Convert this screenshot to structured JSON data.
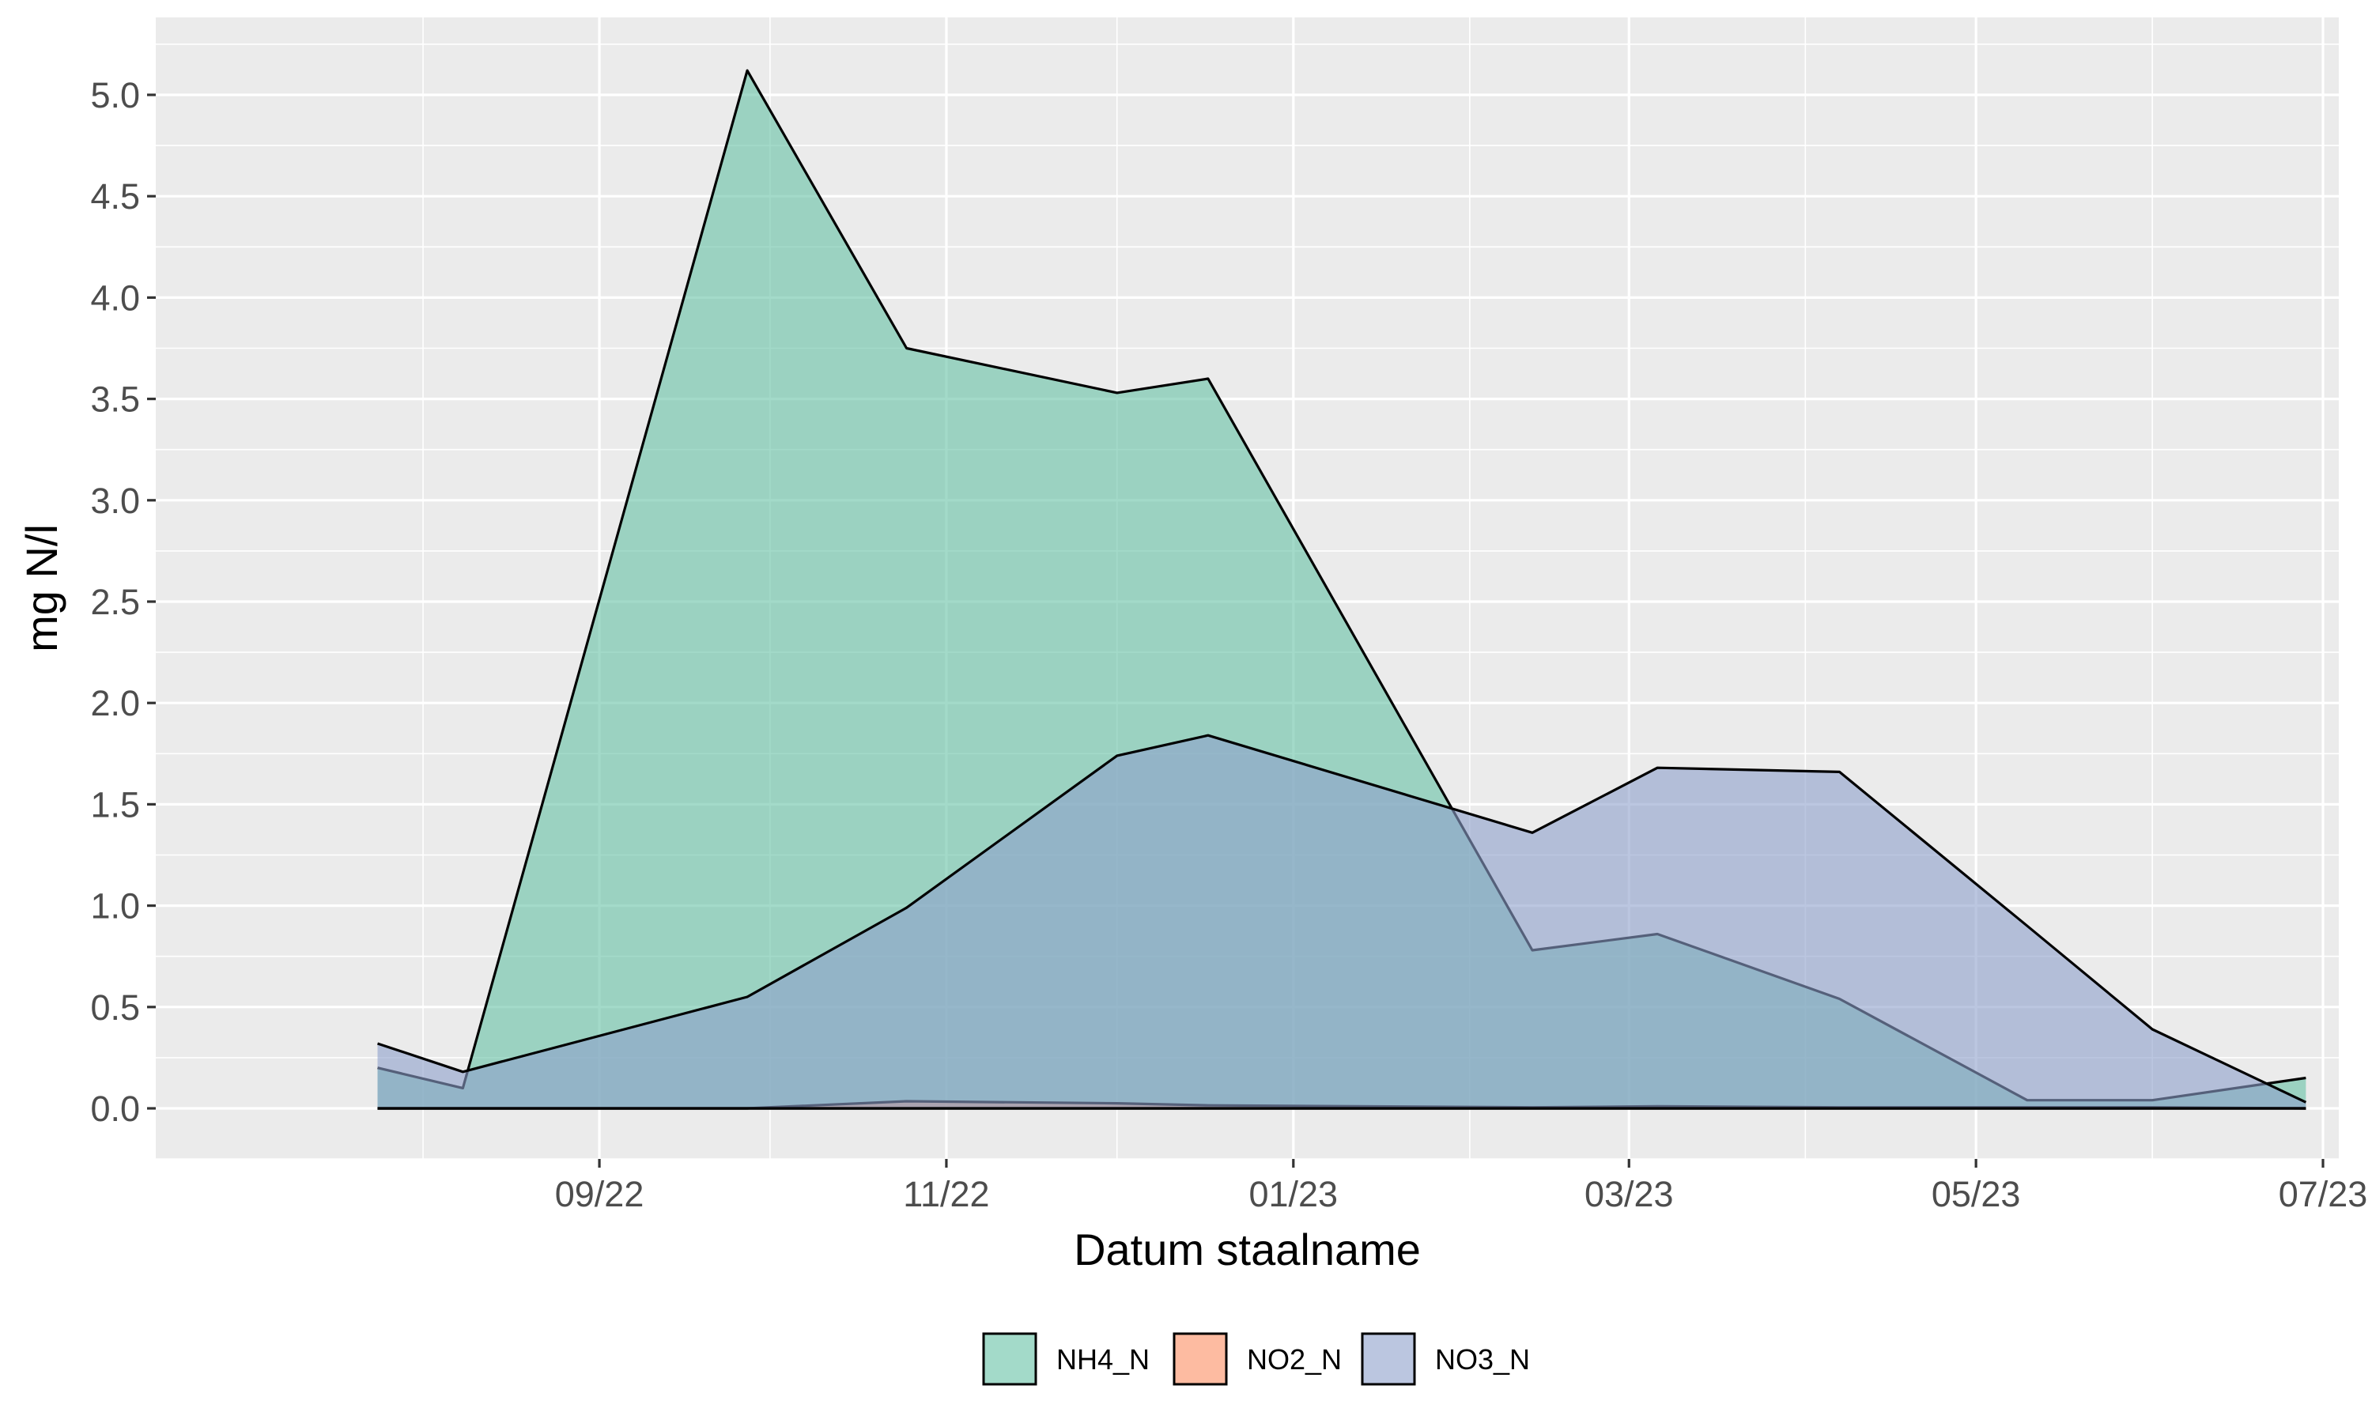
{
  "chart_data": {
    "type": "area",
    "title": "",
    "xlabel": "Datum staalname",
    "ylabel": "mg N/l",
    "ylim": [
      -0.25,
      5.4
    ],
    "grid": true,
    "legend_position": "bottom",
    "x_ticks": [
      {
        "date": "2022-09-01",
        "label": "09/22"
      },
      {
        "date": "2022-11-01",
        "label": "11/22"
      },
      {
        "date": "2023-01-01",
        "label": "01/23"
      },
      {
        "date": "2023-03-01",
        "label": "03/23"
      },
      {
        "date": "2023-05-01",
        "label": "05/23"
      },
      {
        "date": "2023-07-01",
        "label": "07/23"
      }
    ],
    "x_minor_ticks": [
      "2022-08-01",
      "2022-10-01",
      "2022-12-01",
      "2023-02-01",
      "2023-04-01",
      "2023-06-01"
    ],
    "xlim": [
      "2022-07-01",
      "2023-07-01"
    ],
    "y_ticks": [
      {
        "value": 0.0,
        "label": "0.0"
      },
      {
        "value": 0.5,
        "label": "0.5"
      },
      {
        "value": 1.0,
        "label": "1.0"
      },
      {
        "value": 1.5,
        "label": "1.5"
      },
      {
        "value": 2.0,
        "label": "2.0"
      },
      {
        "value": 2.5,
        "label": "2.5"
      },
      {
        "value": 3.0,
        "label": "3.0"
      },
      {
        "value": 3.5,
        "label": "3.5"
      },
      {
        "value": 4.0,
        "label": "4.0"
      },
      {
        "value": 4.5,
        "label": "4.5"
      },
      {
        "value": 5.0,
        "label": "5.0"
      }
    ],
    "series": [
      {
        "name": "NH4_N",
        "color": "#66C2A5",
        "x": [
          "2022-07-24",
          "2022-08-08",
          "2022-09-27",
          "2022-10-25",
          "2022-12-01",
          "2022-12-17",
          "2023-02-12",
          "2023-03-06",
          "2023-04-07",
          "2023-05-10",
          "2023-06-01",
          "2023-06-28"
        ],
        "values": [
          0.2,
          0.1,
          5.12,
          3.75,
          3.53,
          3.6,
          0.78,
          0.86,
          0.54,
          0.04,
          0.04,
          0.15
        ]
      },
      {
        "name": "NO2_N",
        "color": "#FC8D62",
        "x": [
          "2022-07-24",
          "2022-08-08",
          "2022-09-27",
          "2022-10-25",
          "2022-12-01",
          "2022-12-17",
          "2023-02-12",
          "2023-03-06",
          "2023-04-07",
          "2023-05-10",
          "2023-06-01",
          "2023-06-28"
        ],
        "values": [
          0.0,
          0.0,
          0.0,
          0.035,
          0.025,
          0.015,
          0.005,
          0.01,
          0.005,
          0.005,
          0.005,
          0.0
        ]
      },
      {
        "name": "NO3_N",
        "color": "#8DA0CB",
        "x": [
          "2022-07-24",
          "2022-08-08",
          "2022-09-27",
          "2022-10-25",
          "2022-12-01",
          "2022-12-17",
          "2023-02-12",
          "2023-03-06",
          "2023-04-07",
          "2023-05-10",
          "2023-06-01",
          "2023-06-28"
        ],
        "values": [
          0.32,
          0.18,
          0.55,
          0.99,
          1.74,
          1.84,
          1.36,
          1.68,
          1.66,
          0.9,
          0.39,
          0.03
        ]
      }
    ]
  }
}
